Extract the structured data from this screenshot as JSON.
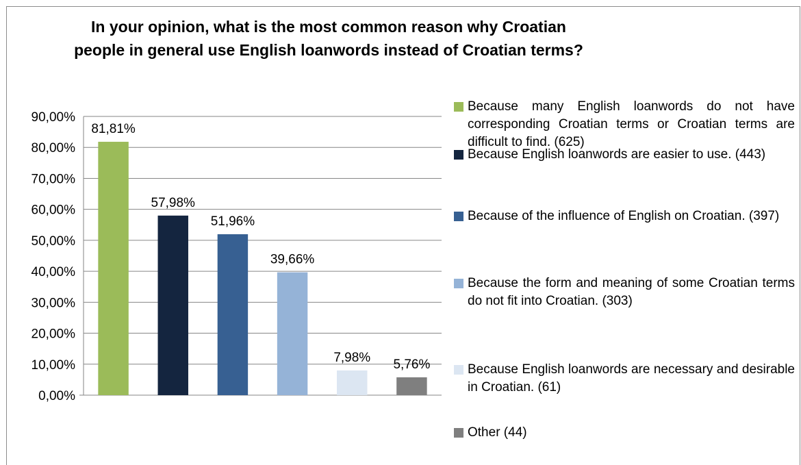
{
  "chart_data": {
    "type": "bar",
    "title": "In your opinion, what is the most common reason why Croatian\npeople in general use English loanwords instead of Croatian terms?",
    "xlabel": "",
    "ylabel": "",
    "ylim": [
      0,
      90
    ],
    "yticks": [
      "0,00%",
      "10,00%",
      "20,00%",
      "30,00%",
      "40,00%",
      "50,00%",
      "60,00%",
      "70,00%",
      "80,00%",
      "90,00%"
    ],
    "grid": true,
    "legend_position": "right",
    "categories": [
      "Because many English loanwords do not have corresponding Croatian terms or Croatian terms are difficult to find. (625)",
      "Because English loanwords are easier to use. (443)",
      "Because of the influence of English on Croatian. (397)",
      "Because the form and meaning of some Croatian terms do not fit into Croatian. (303)",
      "Because English loanwords are necessary and desirable in Croatian. (61)",
      "Other (44)"
    ],
    "values": [
      81.81,
      57.98,
      51.96,
      39.66,
      7.98,
      5.76
    ],
    "data_labels": [
      "81,81%",
      "57,98%",
      "51,96%",
      "39,66%",
      "7,98%",
      "5,76%"
    ],
    "colors": [
      "#9bbb59",
      "#14253f",
      "#376092",
      "#95b3d7",
      "#dce6f2",
      "#7f7f7f"
    ]
  }
}
